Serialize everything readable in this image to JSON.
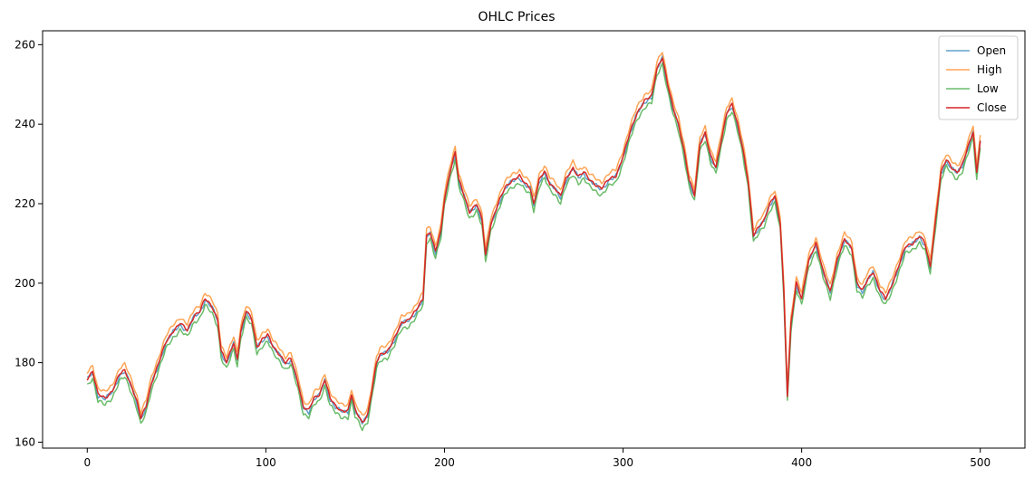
{
  "chart_data": {
    "type": "line",
    "title": "OHLC Prices",
    "xlabel": "",
    "ylabel": "",
    "xlim": [
      -25,
      525
    ],
    "ylim": [
      158.5,
      263.5
    ],
    "x_ticks": [
      0,
      100,
      200,
      300,
      400,
      500
    ],
    "y_ticks": [
      160,
      180,
      200,
      220,
      240,
      260
    ],
    "grid": false,
    "legend": "top-right",
    "close_keypoints": [
      [
        0,
        176
      ],
      [
        3,
        178
      ],
      [
        6,
        172
      ],
      [
        10,
        171
      ],
      [
        14,
        173
      ],
      [
        18,
        177
      ],
      [
        21,
        178
      ],
      [
        25,
        174
      ],
      [
        28,
        170
      ],
      [
        30,
        166
      ],
      [
        33,
        169
      ],
      [
        36,
        175
      ],
      [
        40,
        180
      ],
      [
        44,
        185
      ],
      [
        48,
        188
      ],
      [
        52,
        190
      ],
      [
        56,
        188
      ],
      [
        60,
        192
      ],
      [
        63,
        193
      ],
      [
        66,
        196
      ],
      [
        70,
        194
      ],
      [
        73,
        191
      ],
      [
        75,
        183
      ],
      [
        78,
        180
      ],
      [
        82,
        185
      ],
      [
        84,
        181
      ],
      [
        86,
        188
      ],
      [
        89,
        193
      ],
      [
        92,
        191
      ],
      [
        95,
        184
      ],
      [
        98,
        186
      ],
      [
        101,
        187
      ],
      [
        104,
        184
      ],
      [
        108,
        182
      ],
      [
        111,
        180
      ],
      [
        114,
        181
      ],
      [
        118,
        175
      ],
      [
        121,
        169
      ],
      [
        124,
        168
      ],
      [
        127,
        171
      ],
      [
        130,
        172
      ],
      [
        133,
        176
      ],
      [
        136,
        171
      ],
      [
        139,
        169
      ],
      [
        142,
        168
      ],
      [
        146,
        168
      ],
      [
        148,
        172
      ],
      [
        150,
        168
      ],
      [
        154,
        165
      ],
      [
        157,
        167
      ],
      [
        159,
        172
      ],
      [
        162,
        180
      ],
      [
        164,
        182
      ],
      [
        168,
        183
      ],
      [
        172,
        186
      ],
      [
        176,
        190
      ],
      [
        180,
        191
      ],
      [
        184,
        193
      ],
      [
        188,
        196
      ],
      [
        190,
        212
      ],
      [
        192,
        213
      ],
      [
        195,
        208
      ],
      [
        198,
        213
      ],
      [
        200,
        221
      ],
      [
        203,
        228
      ],
      [
        206,
        233
      ],
      [
        208,
        226
      ],
      [
        211,
        222
      ],
      [
        214,
        218
      ],
      [
        218,
        220
      ],
      [
        221,
        216
      ],
      [
        223,
        207
      ],
      [
        226,
        215
      ],
      [
        230,
        220
      ],
      [
        234,
        224
      ],
      [
        238,
        226
      ],
      [
        242,
        227
      ],
      [
        245,
        225
      ],
      [
        248,
        224
      ],
      [
        250,
        220
      ],
      [
        253,
        226
      ],
      [
        256,
        228
      ],
      [
        259,
        225
      ],
      [
        262,
        224
      ],
      [
        265,
        222
      ],
      [
        268,
        226
      ],
      [
        272,
        229
      ],
      [
        275,
        227
      ],
      [
        278,
        228
      ],
      [
        281,
        226
      ],
      [
        284,
        225
      ],
      [
        288,
        224
      ],
      [
        292,
        226
      ],
      [
        296,
        227
      ],
      [
        300,
        232
      ],
      [
        304,
        238
      ],
      [
        308,
        243
      ],
      [
        312,
        246
      ],
      [
        316,
        247
      ],
      [
        319,
        254
      ],
      [
        322,
        257
      ],
      [
        325,
        250
      ],
      [
        328,
        244
      ],
      [
        331,
        240
      ],
      [
        334,
        234
      ],
      [
        337,
        226
      ],
      [
        340,
        222
      ],
      [
        343,
        235
      ],
      [
        346,
        238
      ],
      [
        349,
        232
      ],
      [
        352,
        229
      ],
      [
        355,
        236
      ],
      [
        358,
        243
      ],
      [
        361,
        245
      ],
      [
        364,
        240
      ],
      [
        367,
        234
      ],
      [
        370,
        226
      ],
      [
        373,
        212
      ],
      [
        376,
        214
      ],
      [
        379,
        216
      ],
      [
        382,
        220
      ],
      [
        385,
        222
      ],
      [
        388,
        215
      ],
      [
        390,
        198
      ],
      [
        392,
        172
      ],
      [
        394,
        190
      ],
      [
        397,
        200
      ],
      [
        400,
        196
      ],
      [
        404,
        206
      ],
      [
        408,
        210
      ],
      [
        412,
        203
      ],
      [
        416,
        198
      ],
      [
        420,
        206
      ],
      [
        424,
        211
      ],
      [
        428,
        209
      ],
      [
        431,
        200
      ],
      [
        434,
        198
      ],
      [
        437,
        201
      ],
      [
        440,
        203
      ],
      [
        444,
        198
      ],
      [
        447,
        196
      ],
      [
        450,
        199
      ],
      [
        454,
        204
      ],
      [
        458,
        209
      ],
      [
        462,
        210
      ],
      [
        466,
        212
      ],
      [
        469,
        210
      ],
      [
        472,
        204
      ],
      [
        475,
        216
      ],
      [
        478,
        228
      ],
      [
        481,
        231
      ],
      [
        484,
        229
      ],
      [
        487,
        228
      ],
      [
        490,
        230
      ],
      [
        493,
        234
      ],
      [
        496,
        238
      ],
      [
        498,
        228
      ],
      [
        500,
        236
      ]
    ],
    "series": [
      {
        "name": "Open",
        "color": "#1f77b4",
        "opacity": 0.7,
        "offset": -0.3,
        "noise": 0.7,
        "width": 1.5
      },
      {
        "name": "High",
        "color": "#ff7f0e",
        "opacity": 0.7,
        "offset": 1.5,
        "noise": 0.6,
        "width": 1.5
      },
      {
        "name": "Low",
        "color": "#2ca02c",
        "opacity": 0.7,
        "offset": -1.7,
        "noise": 0.7,
        "width": 1.5
      },
      {
        "name": "Close",
        "color": "#d62728",
        "opacity": 1.0,
        "offset": 0.0,
        "noise": 0.5,
        "width": 1.5
      }
    ]
  }
}
